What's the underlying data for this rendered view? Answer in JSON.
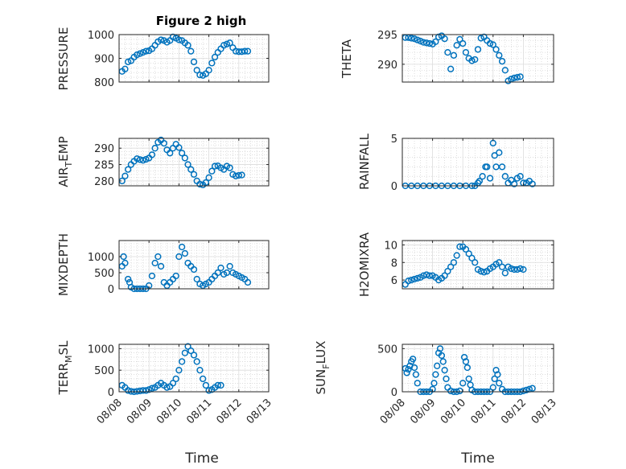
{
  "figure": {
    "marker_color": "#0072BD",
    "x_axis_label": "Time"
  },
  "chart_data": [
    {
      "type": "scatter",
      "title": "Figure 2 high",
      "ylabel": "PRESSURE",
      "ylim": [
        800,
        1000
      ],
      "yticks": [
        800,
        900,
        1000
      ],
      "ytick_labels": [
        "800",
        "900",
        "1000"
      ],
      "xlim": [
        0,
        5
      ],
      "xticks": [
        0,
        1,
        2,
        3,
        4,
        5
      ],
      "xtick_labels": [
        "08/08",
        "08/09",
        "08/10",
        "08/11",
        "08/12",
        "08/13"
      ],
      "show_xtick_labels": false,
      "x": [
        0.1,
        0.2,
        0.3,
        0.4,
        0.5,
        0.6,
        0.7,
        0.8,
        0.9,
        1.0,
        1.1,
        1.2,
        1.3,
        1.4,
        1.5,
        1.6,
        1.7,
        1.8,
        1.9,
        2.0,
        2.1,
        2.2,
        2.3,
        2.4,
        2.5,
        2.6,
        2.7,
        2.8,
        2.9,
        3.0,
        3.1,
        3.2,
        3.3,
        3.4,
        3.5,
        3.6,
        3.7,
        3.8,
        3.9,
        4.0,
        4.1,
        4.2,
        4.3
      ],
      "y": [
        845,
        855,
        885,
        890,
        905,
        915,
        920,
        925,
        930,
        932,
        940,
        955,
        970,
        978,
        975,
        968,
        975,
        990,
        985,
        978,
        975,
        965,
        955,
        930,
        885,
        850,
        830,
        828,
        835,
        850,
        880,
        905,
        925,
        940,
        955,
        960,
        965,
        945,
        930,
        928,
        928,
        930,
        930
      ]
    },
    {
      "type": "scatter",
      "title": "",
      "ylabel": "THETA",
      "ylim": [
        287,
        295
      ],
      "yticks": [
        290,
        295
      ],
      "ytick_labels": [
        "290",
        "295"
      ],
      "xlim": [
        0,
        5
      ],
      "xticks": [
        0,
        1,
        2,
        3,
        4,
        5
      ],
      "xtick_labels": [
        "08/08",
        "08/09",
        "08/10",
        "08/11",
        "08/12",
        "08/13"
      ],
      "show_xtick_labels": false,
      "x": [
        0.1,
        0.2,
        0.3,
        0.4,
        0.5,
        0.6,
        0.7,
        0.8,
        0.9,
        1.0,
        1.1,
        1.2,
        1.3,
        1.4,
        1.5,
        1.6,
        1.7,
        1.8,
        1.9,
        2.0,
        2.1,
        2.2,
        2.3,
        2.4,
        2.5,
        2.6,
        2.7,
        2.8,
        2.9,
        3.0,
        3.1,
        3.2,
        3.3,
        3.4,
        3.5,
        3.6,
        3.7,
        3.8,
        3.9,
        4.0,
        4.1,
        4.2,
        4.3
      ],
      "y": [
        294.5,
        294.5,
        294.4,
        294.3,
        294.1,
        293.9,
        293.7,
        293.6,
        293.5,
        293.4,
        293.8,
        294.6,
        294.8,
        294.3,
        292,
        289.2,
        291.5,
        293.2,
        294.2,
        293.5,
        292,
        291,
        290.6,
        290.8,
        292.5,
        294.4,
        294.6,
        294,
        293.5,
        293.3,
        292.5,
        291.5,
        290.5,
        289,
        287.2,
        287.5,
        287.7,
        287.8,
        287.9,
        null,
        null,
        null,
        null
      ]
    },
    {
      "type": "scatter",
      "title": "",
      "ylabel": "AIR_TEMP",
      "ylim": [
        278.5,
        293
      ],
      "yticks": [
        280,
        285,
        290
      ],
      "ytick_labels": [
        "280",
        "285",
        "290"
      ],
      "xlim": [
        0,
        5
      ],
      "xticks": [
        0,
        1,
        2,
        3,
        4,
        5
      ],
      "xtick_labels": [
        "08/08",
        "08/09",
        "08/10",
        "08/11",
        "08/12",
        "08/13"
      ],
      "show_xtick_labels": false,
      "x": [
        0.1,
        0.2,
        0.3,
        0.4,
        0.5,
        0.6,
        0.7,
        0.8,
        0.9,
        1.0,
        1.1,
        1.2,
        1.3,
        1.4,
        1.5,
        1.6,
        1.7,
        1.8,
        1.9,
        2.0,
        2.1,
        2.2,
        2.3,
        2.4,
        2.5,
        2.6,
        2.7,
        2.8,
        2.9,
        3.0,
        3.1,
        3.2,
        3.3,
        3.4,
        3.5,
        3.6,
        3.7,
        3.8,
        3.9,
        4.0,
        4.1,
        4.2,
        4.3
      ],
      "y": [
        280,
        281.5,
        283.5,
        285,
        286,
        286.8,
        286.5,
        286.3,
        286.6,
        287,
        288,
        290,
        291.8,
        292.5,
        291.5,
        289.5,
        288.5,
        290,
        291.2,
        290.2,
        288.5,
        287,
        285,
        283.5,
        282,
        280,
        279,
        278.8,
        279.5,
        281,
        283,
        284.5,
        284.6,
        284,
        283.5,
        284.5,
        284,
        282,
        281.5,
        281.7,
        281.8,
        null,
        null
      ]
    },
    {
      "type": "scatter",
      "title": "",
      "ylabel": "RAINFALL",
      "ylim": [
        0,
        5
      ],
      "yticks": [
        0,
        5
      ],
      "ytick_labels": [
        "0",
        "5"
      ],
      "xlim": [
        0,
        5
      ],
      "xticks": [
        0,
        1,
        2,
        3,
        4,
        5
      ],
      "xtick_labels": [
        "08/08",
        "08/09",
        "08/10",
        "08/11",
        "08/12",
        "08/13"
      ],
      "show_xtick_labels": false,
      "x": [
        0.1,
        0.3,
        0.5,
        0.7,
        0.9,
        1.1,
        1.3,
        1.5,
        1.7,
        1.9,
        2.1,
        2.3,
        2.4,
        2.5,
        2.55,
        2.65,
        2.75,
        2.8,
        2.9,
        3.0,
        3.05,
        3.1,
        3.2,
        3.3,
        3.4,
        3.5,
        3.6,
        3.7,
        3.8,
        3.9,
        4.0,
        4.1,
        4.2,
        4.3
      ],
      "y": [
        0,
        0,
        0,
        0,
        0,
        0,
        0,
        0,
        0,
        0,
        0,
        0,
        0,
        0.3,
        0.5,
        1,
        2,
        2,
        0.8,
        4.5,
        3.2,
        2,
        3.5,
        2,
        1,
        0.3,
        0.6,
        0.2,
        0.8,
        1,
        0.3,
        0.3,
        0.5,
        0.2
      ]
    },
    {
      "type": "scatter",
      "title": "",
      "ylabel": "MIXDEPTH",
      "ylim": [
        0,
        1500
      ],
      "yticks": [
        0,
        500,
        1000
      ],
      "ytick_labels": [
        "0",
        "500",
        "1000"
      ],
      "xlim": [
        0,
        5
      ],
      "xticks": [
        0,
        1,
        2,
        3,
        4,
        5
      ],
      "xtick_labels": [
        "08/08",
        "08/09",
        "08/10",
        "08/11",
        "08/12",
        "08/13"
      ],
      "show_xtick_labels": false,
      "x": [
        0.1,
        0.15,
        0.2,
        0.3,
        0.35,
        0.4,
        0.5,
        0.6,
        0.7,
        0.8,
        0.9,
        1.0,
        1.1,
        1.2,
        1.3,
        1.4,
        1.5,
        1.6,
        1.7,
        1.8,
        1.9,
        2.0,
        2.1,
        2.2,
        2.3,
        2.4,
        2.5,
        2.6,
        2.7,
        2.8,
        2.9,
        3.0,
        3.1,
        3.2,
        3.3,
        3.4,
        3.5,
        3.6,
        3.7,
        3.8,
        3.9,
        4.0,
        4.1,
        4.2,
        4.3
      ],
      "y": [
        700,
        1000,
        800,
        300,
        200,
        50,
        0,
        0,
        0,
        0,
        0,
        100,
        400,
        800,
        1000,
        700,
        200,
        100,
        200,
        300,
        400,
        1000,
        1300,
        1100,
        800,
        700,
        600,
        300,
        150,
        100,
        150,
        200,
        300,
        400,
        500,
        650,
        450,
        500,
        700,
        500,
        450,
        400,
        350,
        300,
        200
      ]
    },
    {
      "type": "scatter",
      "title": "",
      "ylabel": "H2OMIXRA",
      "ylim": [
        5,
        10.5
      ],
      "yticks": [
        6,
        8,
        10
      ],
      "ytick_labels": [
        "6",
        "8",
        "10"
      ],
      "xlim": [
        0,
        5
      ],
      "xticks": [
        0,
        1,
        2,
        3,
        4,
        5
      ],
      "xtick_labels": [
        "08/08",
        "08/09",
        "08/10",
        "08/11",
        "08/12",
        "08/13"
      ],
      "show_xtick_labels": false,
      "x": [
        0.1,
        0.2,
        0.3,
        0.4,
        0.5,
        0.6,
        0.7,
        0.8,
        0.9,
        1.0,
        1.1,
        1.2,
        1.3,
        1.4,
        1.5,
        1.6,
        1.7,
        1.8,
        1.9,
        2.0,
        2.1,
        2.2,
        2.3,
        2.4,
        2.5,
        2.6,
        2.7,
        2.8,
        2.9,
        3.0,
        3.1,
        3.2,
        3.3,
        3.4,
        3.5,
        3.6,
        3.7,
        3.8,
        3.9,
        4.0,
        4.1,
        4.2,
        4.3
      ],
      "y": [
        5.5,
        5.9,
        6.0,
        6.1,
        6.2,
        6.3,
        6.5,
        6.6,
        6.5,
        6.5,
        6.3,
        6.0,
        6.2,
        6.5,
        7.0,
        7.5,
        8.0,
        8.8,
        9.8,
        9.8,
        9.5,
        9.0,
        8.5,
        8.0,
        7.2,
        7.0,
        6.9,
        7.0,
        7.3,
        7.5,
        7.8,
        8.0,
        7.5,
        6.8,
        7.5,
        7.3,
        7.2,
        7.2,
        7.3,
        7.2,
        null,
        null,
        null
      ]
    },
    {
      "type": "scatter",
      "title": "",
      "ylabel": "TERR_MSL",
      "ylim": [
        0,
        1100
      ],
      "yticks": [
        0,
        500,
        1000
      ],
      "ytick_labels": [
        "0",
        "500",
        "1000"
      ],
      "xlim": [
        0,
        5
      ],
      "xticks": [
        0,
        1,
        2,
        3,
        4,
        5
      ],
      "xtick_labels": [
        "08/08",
        "08/09",
        "08/10",
        "08/11",
        "08/12",
        "08/13"
      ],
      "show_xtick_labels": true,
      "x": [
        0.1,
        0.2,
        0.3,
        0.4,
        0.5,
        0.6,
        0.7,
        0.8,
        0.9,
        1.0,
        1.1,
        1.2,
        1.3,
        1.4,
        1.5,
        1.6,
        1.7,
        1.8,
        1.9,
        2.0,
        2.1,
        2.2,
        2.3,
        2.4,
        2.5,
        2.6,
        2.7,
        2.8,
        2.9,
        3.0,
        3.1,
        3.2,
        3.3,
        3.4,
        3.5,
        3.6,
        3.7,
        3.8,
        3.9,
        4.0,
        4.1,
        4.2,
        4.3
      ],
      "y": [
        150,
        100,
        30,
        10,
        0,
        10,
        20,
        30,
        30,
        50,
        80,
        100,
        150,
        200,
        150,
        100,
        120,
        200,
        300,
        500,
        700,
        900,
        1050,
        950,
        850,
        700,
        500,
        300,
        150,
        30,
        50,
        100,
        150,
        150,
        null,
        null,
        null,
        null,
        null,
        null,
        null,
        null,
        null
      ]
    },
    {
      "type": "scatter",
      "title": "",
      "ylabel": "SUN_FLUX",
      "ylim": [
        0,
        550
      ],
      "yticks": [
        0,
        500
      ],
      "ytick_labels": [
        "0",
        "500"
      ],
      "xlim": [
        0,
        5
      ],
      "xticks": [
        0,
        1,
        2,
        3,
        4,
        5
      ],
      "xtick_labels": [
        "08/08",
        "08/09",
        "08/10",
        "08/11",
        "08/12",
        "08/13"
      ],
      "show_xtick_labels": true,
      "x": [
        0.1,
        0.15,
        0.2,
        0.25,
        0.3,
        0.35,
        0.4,
        0.45,
        0.5,
        0.6,
        0.7,
        0.8,
        0.9,
        1.0,
        1.05,
        1.1,
        1.15,
        1.2,
        1.25,
        1.3,
        1.35,
        1.4,
        1.45,
        1.5,
        1.6,
        1.7,
        1.8,
        1.9,
        2.0,
        2.05,
        2.1,
        2.15,
        2.2,
        2.25,
        2.3,
        2.4,
        2.5,
        2.6,
        2.7,
        2.8,
        2.9,
        3.0,
        3.05,
        3.1,
        3.15,
        3.2,
        3.3,
        3.4,
        3.5,
        3.6,
        3.7,
        3.8,
        3.9,
        4.0,
        4.1,
        4.2,
        4.3
      ],
      "y": [
        270,
        220,
        260,
        300,
        350,
        380,
        280,
        200,
        100,
        0,
        0,
        0,
        0,
        30,
        100,
        200,
        300,
        450,
        500,
        420,
        350,
        250,
        150,
        50,
        10,
        0,
        0,
        10,
        100,
        400,
        350,
        280,
        150,
        80,
        20,
        0,
        0,
        0,
        0,
        0,
        0,
        50,
        150,
        250,
        200,
        100,
        30,
        0,
        0,
        0,
        0,
        0,
        0,
        10,
        20,
        30,
        40
      ]
    }
  ]
}
